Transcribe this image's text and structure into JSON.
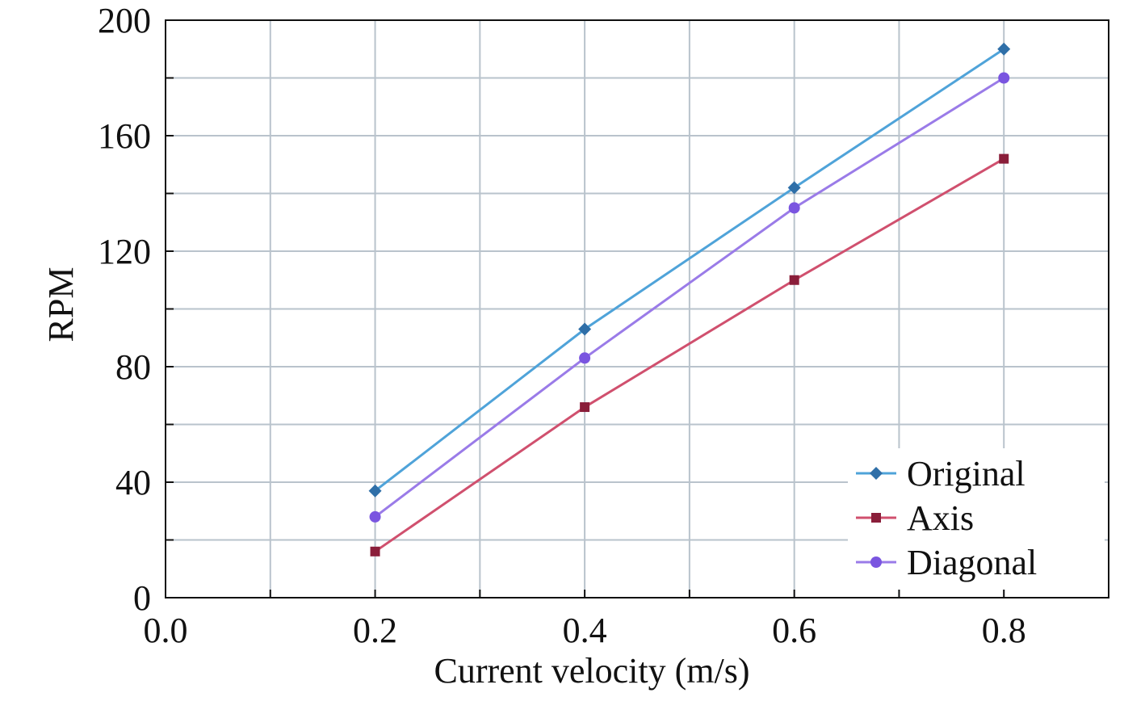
{
  "chart_data": {
    "type": "line",
    "xlabel": "Current velocity (m/s)",
    "ylabel": "RPM",
    "xlim": [
      0.0,
      0.9
    ],
    "ylim": [
      0,
      200
    ],
    "x_ticks": [
      "0.0",
      "0.2",
      "0.4",
      "0.6",
      "0.8"
    ],
    "x_tick_values": [
      0.0,
      0.2,
      0.4,
      0.6,
      0.8
    ],
    "y_ticks": [
      "0",
      "40",
      "80",
      "120",
      "160",
      "200"
    ],
    "y_tick_values": [
      0,
      40,
      80,
      120,
      160,
      200
    ],
    "x_grid_values": [
      0.1,
      0.2,
      0.3,
      0.4,
      0.5,
      0.6,
      0.7,
      0.8
    ],
    "y_grid_values": [
      20,
      40,
      60,
      80,
      100,
      120,
      140,
      160,
      180
    ],
    "grid": true,
    "legend_position": "bottom-right",
    "x": [
      0.2,
      0.4,
      0.6,
      0.8
    ],
    "series": [
      {
        "name": "Original",
        "values": [
          37,
          93,
          142,
          190
        ],
        "color": "#4fa3d9",
        "marker": "diamond",
        "marker_color": "#2f6fa8"
      },
      {
        "name": "Axis",
        "values": [
          16,
          66,
          110,
          152
        ],
        "color": "#d0506e",
        "marker": "square",
        "marker_color": "#8a1e3a"
      },
      {
        "name": "Diagonal",
        "values": [
          28,
          83,
          135,
          180
        ],
        "color": "#9a7be8",
        "marker": "circle",
        "marker_color": "#7a55e0"
      }
    ]
  }
}
